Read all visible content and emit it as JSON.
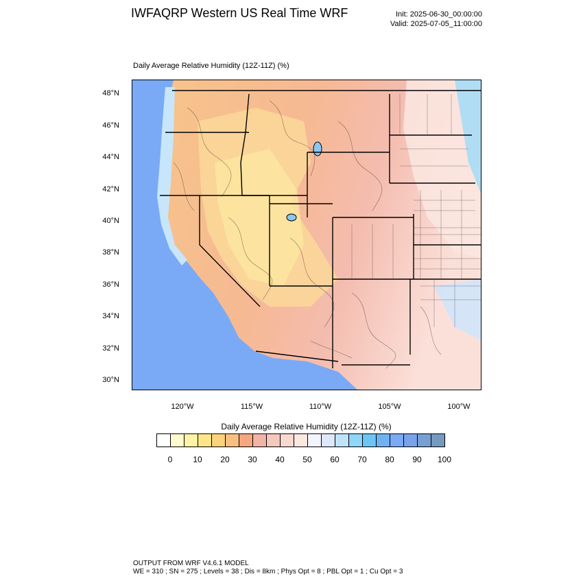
{
  "header": {
    "title": "IWFAQRP Western US Real Time WRF",
    "init": "Init: 2025-06-30_00:00:00",
    "valid": "Valid: 2025-07-05_11:00:00"
  },
  "map": {
    "subtitle": "Daily Average Relative Humidity (12Z-11Z)   (%)",
    "lat_labels": [
      "48°N",
      "46°N",
      "44°N",
      "42°N",
      "40°N",
      "38°N",
      "36°N",
      "34°N",
      "32°N",
      "30°N"
    ],
    "lon_labels": [
      "120°W",
      "115°W",
      "110°W",
      "105°W",
      "100°W"
    ],
    "colors": {
      "ocean": "#7aaaf5",
      "land_dry": "#f8c080",
      "land_mid": "#f4b7a5",
      "land_moist": "#fbe2da"
    }
  },
  "colorbar": {
    "title": "Daily Average Relative Humidity (12Z-11Z)  (%)",
    "labels": [
      "0",
      "10",
      "20",
      "30",
      "40",
      "50",
      "60",
      "70",
      "80",
      "90",
      "100"
    ],
    "colors": [
      "#ffffff",
      "#fffbcf",
      "#fff4a6",
      "#fde68a",
      "#fbd37c",
      "#f8c080",
      "#f3a87f",
      "#f2b4a6",
      "#f4c8bc",
      "#f8d8cf",
      "#fbe8e2",
      "#f4f4ff",
      "#dde9fb",
      "#bfe4fa",
      "#8fd6f7",
      "#6cc6f3",
      "#6fb2f2",
      "#7aaaf5",
      "#7aa2e8",
      "#789fd3",
      "#7899bf"
    ]
  },
  "footer": {
    "line1": "OUTPUT FROM WRF V4.6.1 MODEL",
    "line2": "WE = 310 ; SN = 275 ; Levels = 38 ; Dis = 8km ; Phys Opt = 8 ; PBL Opt = 1 ; Cu Opt = 3"
  }
}
